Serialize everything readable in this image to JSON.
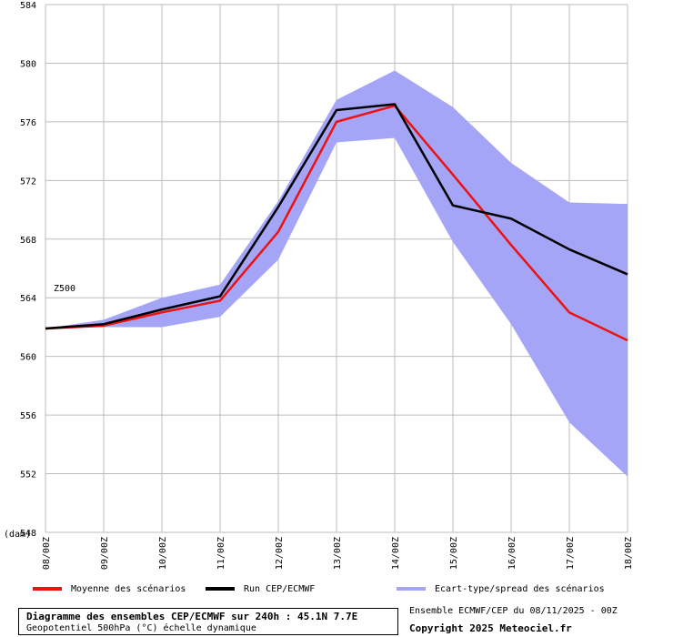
{
  "chart_data": {
    "type": "line",
    "series_label": "Z500",
    "unit_label": "(dam)",
    "ylim": [
      548,
      584
    ],
    "yticks": [
      548,
      552,
      556,
      560,
      564,
      568,
      572,
      576,
      580,
      584
    ],
    "x": [
      "08/00Z",
      "09/00Z",
      "10/00Z",
      "11/00Z",
      "12/00Z",
      "13/00Z",
      "14/00Z",
      "15/00Z",
      "16/00Z",
      "17/00Z",
      "18/00Z"
    ],
    "grid": true,
    "series": [
      {
        "name": "Moyenne des scénarios",
        "color": "#ee1111",
        "values": [
          561.9,
          562.1,
          563.0,
          563.8,
          568.5,
          576.0,
          577.1,
          572.4,
          567.6,
          563.0,
          561.1
        ]
      },
      {
        "name": "Run CEP/ECMWF",
        "color": "#000000",
        "values": [
          561.9,
          562.2,
          563.2,
          564.1,
          570.2,
          576.8,
          577.2,
          570.3,
          569.4,
          567.3,
          565.6
        ]
      }
    ],
    "band": {
      "name": "Ecart-type/spread des scénarios",
      "color": "#a5a5f7",
      "upper": [
        561.9,
        562.5,
        564.0,
        564.9,
        570.6,
        577.5,
        579.5,
        577.0,
        573.2,
        570.5,
        570.4
      ],
      "lower": [
        561.9,
        562.0,
        562.0,
        562.7,
        566.6,
        574.6,
        574.9,
        567.8,
        562.2,
        555.5,
        551.8
      ]
    }
  },
  "legend": {
    "mean_label": "Moyenne des scénarios",
    "run_label": "Run CEP/ECMWF",
    "spread_label": "Ecart-type/spread des scénarios"
  },
  "info": {
    "title": "Diagramme des ensembles CEP/ECMWF sur 240h : 45.1N 7.7E",
    "subtitle": "Geopotentiel 500hPa (°C) échelle dynamique",
    "ensemble": "Ensemble ECMWF/CEP du 08/11/2025 - 00Z",
    "copyright": "Copyright 2025 Meteociel.fr"
  }
}
